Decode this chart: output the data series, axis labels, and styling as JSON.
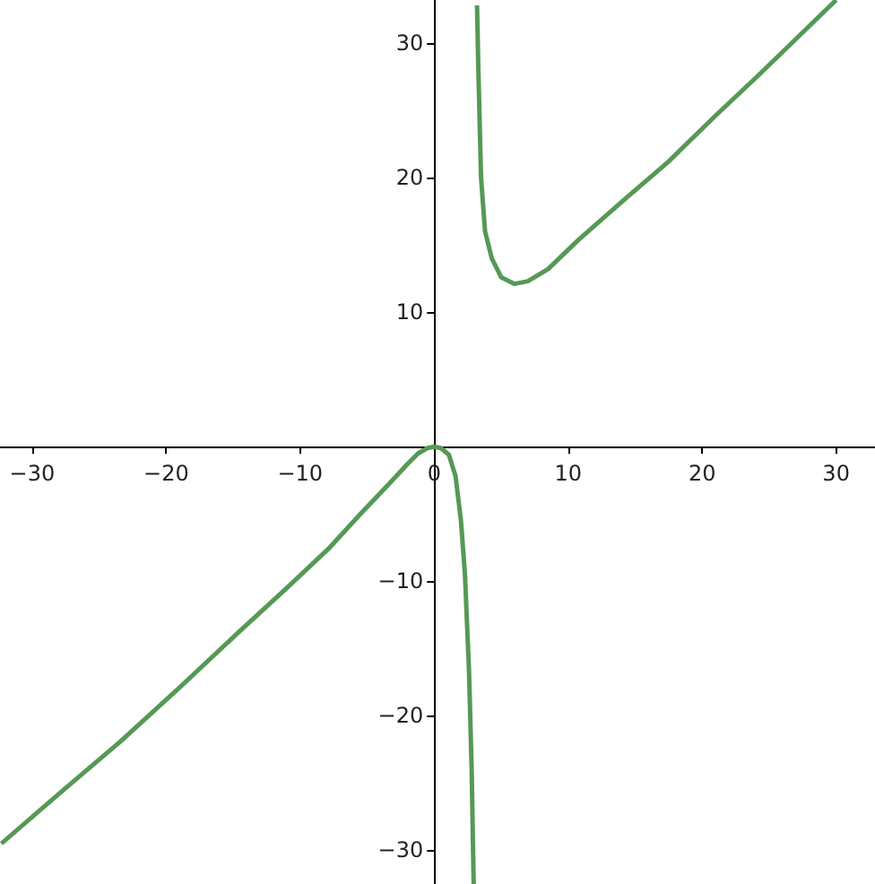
{
  "chart_data": {
    "type": "line",
    "x": [
      -32.3,
      -28,
      -23.4,
      -19,
      -14.5,
      -11,
      -7.8,
      -5.5,
      -3.4,
      -2,
      -1.2,
      -0.5,
      0,
      0.5,
      1.1,
      1.6,
      2.0,
      2.3,
      2.6,
      2.8,
      2.95,
      3.0,
      3.2,
      3.3,
      3.5,
      3.8,
      4.3,
      5,
      6,
      7,
      8.5,
      10.8,
      14,
      17.5,
      21,
      24.2,
      27,
      30
    ],
    "series": [
      {
        "color": "#559955",
        "values": [
          -29.5,
          -25.8,
          -21.9,
          -17.9,
          -13.7,
          -10.5,
          -7.5,
          -5,
          -2.8,
          -1.3,
          -0.5,
          -0.1,
          0,
          -0.1,
          -0.6,
          -2.2,
          -5.5,
          -9.5,
          -16.6,
          -24,
          -32.5,
          null,
          32.8,
          28,
          20,
          16,
          14,
          12.6,
          12.1,
          12.3,
          13.2,
          15.4,
          18.2,
          21.2,
          24.6,
          27.6,
          30.3,
          33.2
        ]
      }
    ],
    "xlim": [
      -32.4,
      32.9
    ],
    "ylim": [
      -32.5,
      33.2
    ],
    "xticks": [
      -30,
      -20,
      -10,
      0,
      10,
      20,
      30
    ],
    "yticks": [
      -30,
      -20,
      -10,
      10,
      20,
      30
    ],
    "grid": false,
    "marker": "none",
    "line_style": "solid"
  }
}
